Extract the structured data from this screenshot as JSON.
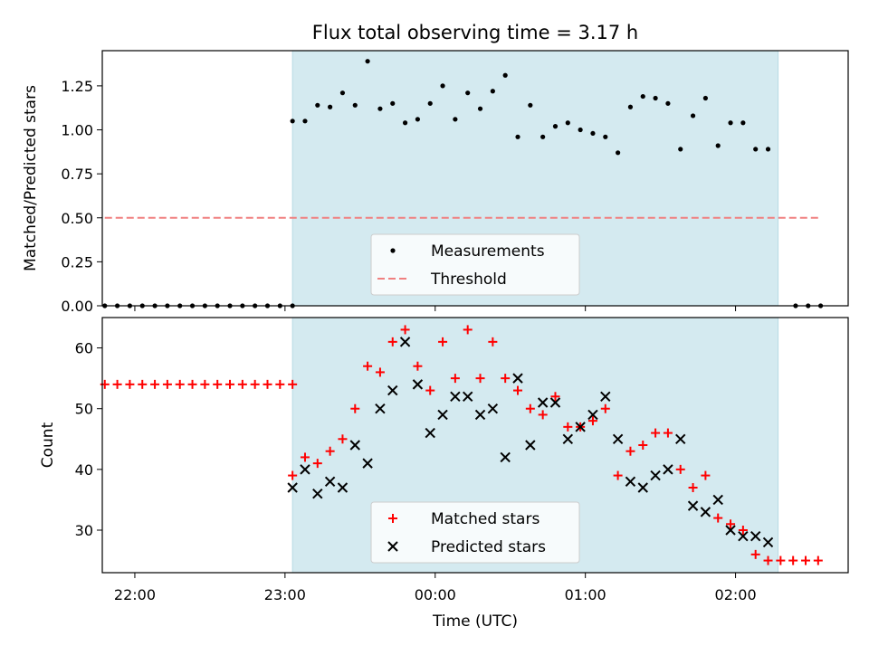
{
  "title": "Flux total observing time = 3.17 h",
  "shaded_color": "#d4eaf0",
  "threshold_color": "#f08080",
  "chart_data": [
    {
      "type": "scatter",
      "panel": "top",
      "title": "Flux total observing time = 3.17 h",
      "xlabel": "",
      "ylabel": "Matched/Predicted stars",
      "xlim": [
        "21:47",
        "02:45"
      ],
      "ylim": [
        0,
        1.45
      ],
      "yticks": [
        "0.00",
        "0.25",
        "0.50",
        "0.75",
        "1.00",
        "1.25"
      ],
      "ytick_values": [
        0,
        0.25,
        0.5,
        0.75,
        1.0,
        1.25
      ],
      "shaded_span": [
        "23:03",
        "02:17"
      ],
      "legend": [
        "Measurements",
        "Threshold"
      ],
      "legend_position": "lower-center",
      "threshold": {
        "name": "Threshold",
        "y": 0.5,
        "x_range": [
          "21:48",
          "02:34"
        ],
        "style": "dashed",
        "color": "#f08080"
      },
      "series": [
        {
          "name": "Measurements",
          "color": "#000000",
          "points": [
            [
              "21:48",
              0
            ],
            [
              "21:53",
              0
            ],
            [
              "21:58",
              0
            ],
            [
              "22:03",
              0
            ],
            [
              "22:08",
              0
            ],
            [
              "22:13",
              0
            ],
            [
              "22:18",
              0
            ],
            [
              "22:23",
              0
            ],
            [
              "22:28",
              0
            ],
            [
              "22:33",
              0
            ],
            [
              "22:38",
              0
            ],
            [
              "22:43",
              0
            ],
            [
              "22:48",
              0
            ],
            [
              "22:53",
              0
            ],
            [
              "22:58",
              0
            ],
            [
              "23:03",
              0
            ],
            [
              "23:03",
              1.05
            ],
            [
              "23:08",
              1.05
            ],
            [
              "23:13",
              1.14
            ],
            [
              "23:18",
              1.13
            ],
            [
              "23:23",
              1.21
            ],
            [
              "23:28",
              1.14
            ],
            [
              "23:33",
              1.39
            ],
            [
              "23:38",
              1.12
            ],
            [
              "23:43",
              1.15
            ],
            [
              "23:48",
              1.04
            ],
            [
              "23:53",
              1.06
            ],
            [
              "23:58",
              1.15
            ],
            [
              "00:03",
              1.25
            ],
            [
              "00:08",
              1.06
            ],
            [
              "00:13",
              1.21
            ],
            [
              "00:18",
              1.12
            ],
            [
              "00:23",
              1.22
            ],
            [
              "00:28",
              1.31
            ],
            [
              "00:33",
              0.96
            ],
            [
              "00:38",
              1.14
            ],
            [
              "00:43",
              0.96
            ],
            [
              "00:48",
              1.02
            ],
            [
              "00:53",
              1.04
            ],
            [
              "00:58",
              1.0
            ],
            [
              "01:03",
              0.98
            ],
            [
              "01:08",
              0.96
            ],
            [
              "01:13",
              0.87
            ],
            [
              "01:18",
              1.13
            ],
            [
              "01:23",
              1.19
            ],
            [
              "01:28",
              1.18
            ],
            [
              "01:33",
              1.15
            ],
            [
              "01:38",
              0.89
            ],
            [
              "01:43",
              1.08
            ],
            [
              "01:48",
              1.18
            ],
            [
              "01:53",
              0.91
            ],
            [
              "01:58",
              1.04
            ],
            [
              "02:03",
              1.04
            ],
            [
              "02:08",
              0.89
            ],
            [
              "02:13",
              0.89
            ],
            [
              "02:24",
              0
            ],
            [
              "02:29",
              0
            ],
            [
              "02:34",
              0
            ]
          ]
        }
      ]
    },
    {
      "type": "scatter",
      "panel": "bottom",
      "xlabel": "Time (UTC)",
      "ylabel": "Count",
      "xlim": [
        "21:47",
        "02:45"
      ],
      "ylim": [
        23,
        65
      ],
      "xticks": [
        "22:00",
        "23:00",
        "00:00",
        "01:00",
        "02:00"
      ],
      "yticks": [
        "30",
        "40",
        "50",
        "60"
      ],
      "ytick_values": [
        30,
        40,
        50,
        60
      ],
      "shaded_span": [
        "23:03",
        "02:17"
      ],
      "legend": [
        "Matched stars",
        "Predicted stars"
      ],
      "legend_position": "lower-center",
      "series": [
        {
          "name": "Matched stars",
          "marker": "+",
          "color": "#ff0000",
          "points": [
            [
              "21:48",
              54
            ],
            [
              "21:53",
              54
            ],
            [
              "21:58",
              54
            ],
            [
              "22:03",
              54
            ],
            [
              "22:08",
              54
            ],
            [
              "22:13",
              54
            ],
            [
              "22:18",
              54
            ],
            [
              "22:23",
              54
            ],
            [
              "22:28",
              54
            ],
            [
              "22:33",
              54
            ],
            [
              "22:38",
              54
            ],
            [
              "22:43",
              54
            ],
            [
              "22:48",
              54
            ],
            [
              "22:53",
              54
            ],
            [
              "22:58",
              54
            ],
            [
              "23:03",
              54
            ],
            [
              "23:03",
              39
            ],
            [
              "23:08",
              42
            ],
            [
              "23:13",
              41
            ],
            [
              "23:18",
              43
            ],
            [
              "23:23",
              45
            ],
            [
              "23:28",
              50
            ],
            [
              "23:33",
              57
            ],
            [
              "23:38",
              56
            ],
            [
              "23:43",
              61
            ],
            [
              "23:48",
              63
            ],
            [
              "23:53",
              57
            ],
            [
              "23:58",
              53
            ],
            [
              "00:03",
              61
            ],
            [
              "00:08",
              55
            ],
            [
              "00:13",
              63
            ],
            [
              "00:18",
              55
            ],
            [
              "00:23",
              61
            ],
            [
              "00:28",
              55
            ],
            [
              "00:33",
              53
            ],
            [
              "00:38",
              50
            ],
            [
              "00:43",
              49
            ],
            [
              "00:48",
              52
            ],
            [
              "00:53",
              47
            ],
            [
              "00:58",
              47
            ],
            [
              "01:03",
              48
            ],
            [
              "01:08",
              50
            ],
            [
              "01:13",
              39
            ],
            [
              "01:18",
              43
            ],
            [
              "01:23",
              44
            ],
            [
              "01:28",
              46
            ],
            [
              "01:33",
              46
            ],
            [
              "01:38",
              40
            ],
            [
              "01:43",
              37
            ],
            [
              "01:48",
              39
            ],
            [
              "01:53",
              32
            ],
            [
              "01:58",
              31
            ],
            [
              "02:03",
              30
            ],
            [
              "02:08",
              26
            ],
            [
              "02:13",
              25
            ],
            [
              "02:18",
              25
            ],
            [
              "02:23",
              25
            ],
            [
              "02:28",
              25
            ],
            [
              "02:33",
              25
            ]
          ]
        },
        {
          "name": "Predicted stars",
          "marker": "x",
          "color": "#000000",
          "points": [
            [
              "23:03",
              37
            ],
            [
              "23:08",
              40
            ],
            [
              "23:13",
              36
            ],
            [
              "23:18",
              38
            ],
            [
              "23:23",
              37
            ],
            [
              "23:28",
              44
            ],
            [
              "23:33",
              41
            ],
            [
              "23:38",
              50
            ],
            [
              "23:43",
              53
            ],
            [
              "23:48",
              61
            ],
            [
              "23:53",
              54
            ],
            [
              "23:58",
              46
            ],
            [
              "00:03",
              49
            ],
            [
              "00:08",
              52
            ],
            [
              "00:13",
              52
            ],
            [
              "00:18",
              49
            ],
            [
              "00:23",
              50
            ],
            [
              "00:28",
              42
            ],
            [
              "00:33",
              55
            ],
            [
              "00:38",
              44
            ],
            [
              "00:43",
              51
            ],
            [
              "00:48",
              51
            ],
            [
              "00:53",
              45
            ],
            [
              "00:58",
              47
            ],
            [
              "01:03",
              49
            ],
            [
              "01:08",
              52
            ],
            [
              "01:13",
              45
            ],
            [
              "01:18",
              38
            ],
            [
              "01:23",
              37
            ],
            [
              "01:28",
              39
            ],
            [
              "01:33",
              40
            ],
            [
              "01:38",
              45
            ],
            [
              "01:43",
              34
            ],
            [
              "01:48",
              33
            ],
            [
              "01:53",
              35
            ],
            [
              "01:58",
              30
            ],
            [
              "02:03",
              29
            ],
            [
              "02:08",
              29
            ],
            [
              "02:13",
              28
            ]
          ]
        }
      ]
    }
  ]
}
